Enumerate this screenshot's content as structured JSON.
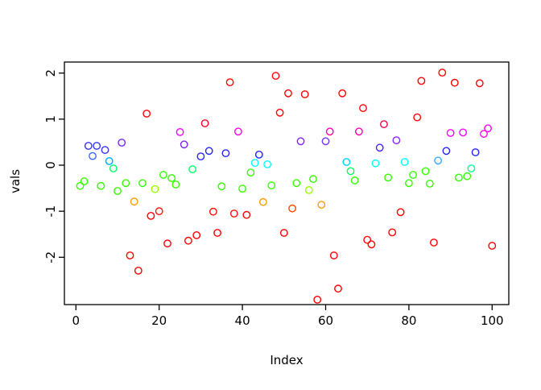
{
  "chart_data": {
    "type": "scatter",
    "title": "",
    "xlabel": "Index",
    "ylabel": "vals",
    "x_ticks": [
      0,
      20,
      40,
      60,
      80,
      100
    ],
    "y_ticks": [
      -2,
      -1,
      0,
      1,
      2
    ],
    "xlim": [
      -3,
      104
    ],
    "ylim": [
      -3.0,
      2.26
    ],
    "grid": false,
    "legend": "none",
    "marker": "open-circle",
    "axis_color": "#000000",
    "background": "#ffffff",
    "points_format": [
      "index",
      "value",
      "color"
    ],
    "points": [
      [
        1,
        -0.45,
        "#33FF00"
      ],
      [
        2,
        -0.35,
        "#33FF00"
      ],
      [
        3,
        0.42,
        "#3333FF"
      ],
      [
        4,
        0.2,
        "#3366FF"
      ],
      [
        5,
        0.42,
        "#3333FF"
      ],
      [
        6,
        -0.45,
        "#33FF00"
      ],
      [
        7,
        0.33,
        "#3333FF"
      ],
      [
        8,
        0.09,
        "#00AAFF"
      ],
      [
        9,
        -0.07,
        "#00FF66"
      ],
      [
        10,
        -0.56,
        "#33FF00"
      ],
      [
        11,
        0.49,
        "#7722FF"
      ],
      [
        12,
        -0.39,
        "#33FF00"
      ],
      [
        13,
        -1.96,
        "#FF0000"
      ],
      [
        14,
        -0.79,
        "#FF9900"
      ],
      [
        15,
        -2.29,
        "#FF0000"
      ],
      [
        16,
        -0.39,
        "#33FF00"
      ],
      [
        17,
        1.12,
        "#FF0000"
      ],
      [
        18,
        -1.1,
        "#FF0000"
      ],
      [
        19,
        -0.52,
        "#99FF00"
      ],
      [
        20,
        -1.0,
        "#FF1100"
      ],
      [
        21,
        -0.21,
        "#33FF00"
      ],
      [
        22,
        -1.7,
        "#FF0000"
      ],
      [
        23,
        -0.28,
        "#33FF00"
      ],
      [
        24,
        -0.42,
        "#33FF00"
      ],
      [
        25,
        0.72,
        "#FF00FF"
      ],
      [
        26,
        0.45,
        "#7722FF"
      ],
      [
        27,
        -1.64,
        "#FF0000"
      ],
      [
        28,
        -0.09,
        "#00FF66"
      ],
      [
        29,
        -1.52,
        "#FF0000"
      ],
      [
        30,
        0.19,
        "#2222FF"
      ],
      [
        31,
        0.91,
        "#FF0022"
      ],
      [
        32,
        0.31,
        "#2222FF"
      ],
      [
        33,
        -1.01,
        "#FF1100"
      ],
      [
        34,
        -1.47,
        "#FF0000"
      ],
      [
        35,
        -0.46,
        "#33FF00"
      ],
      [
        36,
        0.26,
        "#2222FF"
      ],
      [
        37,
        1.8,
        "#FF0000"
      ],
      [
        38,
        -1.05,
        "#FF1100"
      ],
      [
        39,
        0.73,
        "#FF00DD"
      ],
      [
        40,
        -0.51,
        "#33FF00"
      ],
      [
        41,
        -1.08,
        "#FF0000"
      ],
      [
        42,
        -0.16,
        "#33FF00"
      ],
      [
        43,
        0.05,
        "#00FFFF"
      ],
      [
        44,
        0.23,
        "#2222FF"
      ],
      [
        45,
        -0.8,
        "#FF9900"
      ],
      [
        46,
        0.02,
        "#00FFFF"
      ],
      [
        47,
        -0.44,
        "#33FF00"
      ],
      [
        48,
        1.94,
        "#FF0000"
      ],
      [
        49,
        1.14,
        "#FF0000"
      ],
      [
        50,
        -1.47,
        "#FF0000"
      ],
      [
        51,
        1.56,
        "#FF0000"
      ],
      [
        52,
        -0.94,
        "#FF4500"
      ],
      [
        53,
        -0.39,
        "#33FF00"
      ],
      [
        54,
        0.52,
        "#8822FF"
      ],
      [
        55,
        1.54,
        "#FF0000"
      ],
      [
        56,
        -0.54,
        "#99FF00"
      ],
      [
        57,
        -0.3,
        "#33FF00"
      ],
      [
        58,
        -2.92,
        "#FF0000"
      ],
      [
        59,
        -0.86,
        "#FF9900"
      ],
      [
        60,
        0.52,
        "#7733FF"
      ],
      [
        61,
        0.73,
        "#FF00AA"
      ],
      [
        62,
        -1.96,
        "#FF0000"
      ],
      [
        63,
        -2.68,
        "#FF0000"
      ],
      [
        64,
        1.56,
        "#FF0000"
      ],
      [
        65,
        0.07,
        "#00CCFF"
      ],
      [
        66,
        -0.13,
        "#00FF66"
      ],
      [
        67,
        -0.33,
        "#33FF00"
      ],
      [
        68,
        0.73,
        "#FF00AA"
      ],
      [
        69,
        1.24,
        "#FF0000"
      ],
      [
        70,
        -1.62,
        "#FF0000"
      ],
      [
        71,
        -1.72,
        "#FF0000"
      ],
      [
        72,
        0.04,
        "#00FFFF"
      ],
      [
        73,
        0.38,
        "#4422FF"
      ],
      [
        74,
        0.89,
        "#FF0044"
      ],
      [
        75,
        -0.27,
        "#33FF00"
      ],
      [
        76,
        -1.46,
        "#FF0000"
      ],
      [
        77,
        0.54,
        "#8822FF"
      ],
      [
        78,
        -1.02,
        "#FF0000"
      ],
      [
        79,
        0.07,
        "#00FFFF"
      ],
      [
        80,
        -0.39,
        "#33FF00"
      ],
      [
        81,
        -0.21,
        "#33FF00"
      ],
      [
        82,
        1.04,
        "#FF0000"
      ],
      [
        83,
        1.83,
        "#FF0000"
      ],
      [
        84,
        -0.13,
        "#33FF00"
      ],
      [
        85,
        -0.4,
        "#33FF00"
      ],
      [
        86,
        -1.68,
        "#FF0000"
      ],
      [
        87,
        0.1,
        "#33AAFF"
      ],
      [
        88,
        2.01,
        "#FF0000"
      ],
      [
        89,
        0.31,
        "#2222FF"
      ],
      [
        90,
        0.7,
        "#FF00FF"
      ],
      [
        91,
        1.79,
        "#FF0000"
      ],
      [
        92,
        -0.27,
        "#33FF00"
      ],
      [
        93,
        0.71,
        "#FF00FF"
      ],
      [
        94,
        -0.24,
        "#33FF00"
      ],
      [
        95,
        -0.07,
        "#00FF99"
      ],
      [
        96,
        0.28,
        "#2222FF"
      ],
      [
        97,
        1.78,
        "#FF0000"
      ],
      [
        98,
        0.68,
        "#FF00EE"
      ],
      [
        99,
        0.8,
        "#FF00EE"
      ],
      [
        100,
        -1.75,
        "#FF0000"
      ]
    ]
  }
}
